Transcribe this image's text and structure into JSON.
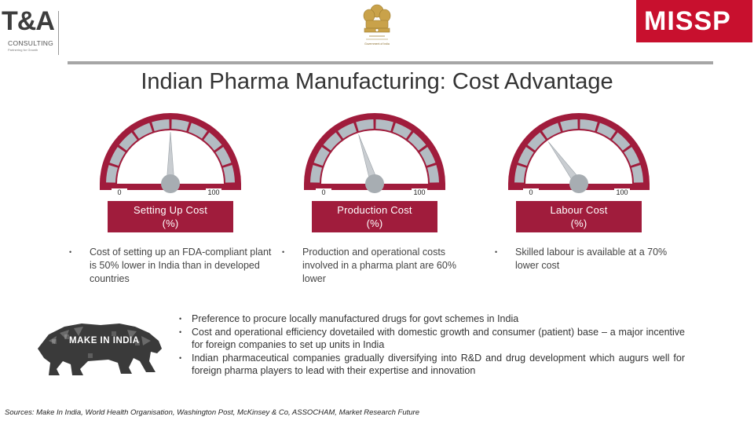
{
  "header": {
    "left_logo": {
      "mark": "T&A",
      "name": "CONSULTING",
      "tagline": "Partnering for Growth"
    },
    "center_emblem": {
      "caption": "Government of India"
    },
    "right_logo": {
      "text": "MISSP",
      "color": "#c8102e"
    }
  },
  "title": "Indian Pharma Manufacturing: Cost Advantage",
  "colors": {
    "accent": "#a01c3c",
    "gauge_segment": "#b3bcc3",
    "needle": "#c9cdd1"
  },
  "gauges": [
    {
      "min_label": "0",
      "max_label": "100",
      "value_pct": 50,
      "caption_line1": "Setting Up Cost",
      "caption_line2": "(%)",
      "bullet": "Cost of setting up an FDA-compliant plant is 50% lower in India than in developed countries"
    },
    {
      "min_label": "0",
      "max_label": "100",
      "value_pct": 40,
      "caption_line1": "Production Cost",
      "caption_line2": "(%)",
      "bullet": "Production and operational costs involved in a pharma plant are 60% lower"
    },
    {
      "min_label": "0",
      "max_label": "100",
      "value_pct": 30,
      "caption_line1": "Labour Cost",
      "caption_line2": "(%)",
      "bullet": "Skilled labour is available at a 70% lower cost"
    }
  ],
  "make_in_india": {
    "text": "MAKE IN INDIA",
    "icon": "lion-icon"
  },
  "points": [
    "Preference to procure locally manufactured drugs for govt schemes in India",
    "Cost and operational efficiency dovetailed with domestic growth and consumer (patient) base – a major incentive for foreign companies to set up units in India",
    "Indian pharmaceutical companies gradually diversifying into R&D and drug development which augurs well for foreign pharma players to lead with their expertise and innovation"
  ],
  "sources": "Sources: Make In India, World Health Organisation, Washington Post, McKinsey & Co, ASSOCHAM, Market Research Future"
}
